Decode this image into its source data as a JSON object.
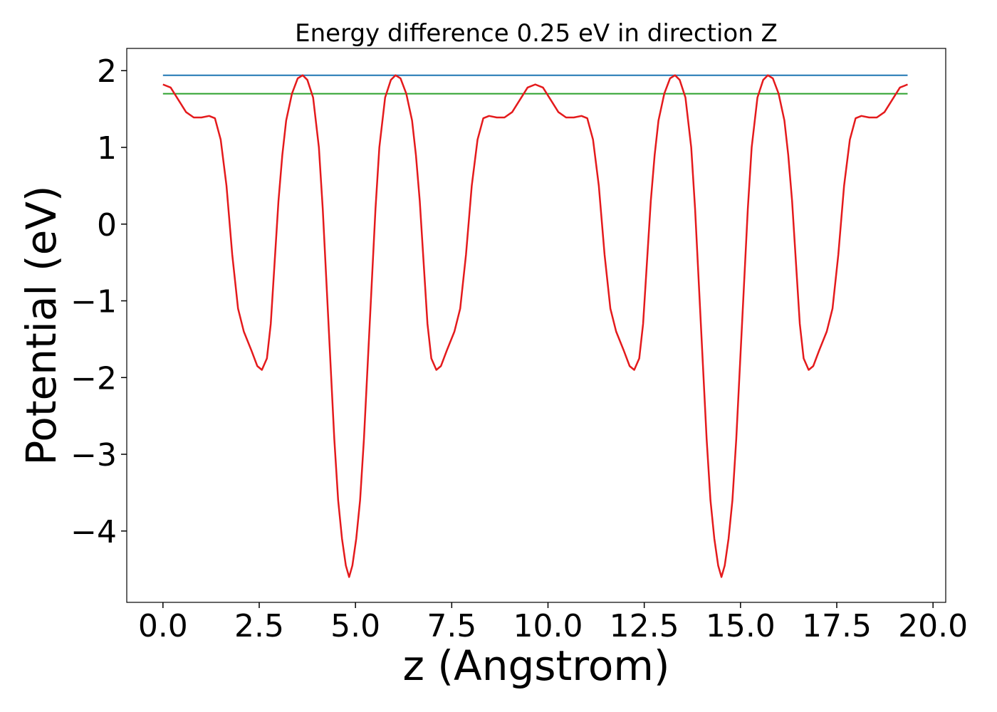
{
  "chart_data": {
    "type": "line",
    "title": "Energy difference 0.25 eV in direction Z",
    "xlabel": "z (Angstrom)",
    "ylabel": "Potential (eV)",
    "xlim": [
      -0.94,
      20.33
    ],
    "ylim": [
      -4.93,
      2.29
    ],
    "xticks": [
      {
        "value": 0,
        "label": "0.0"
      },
      2.5,
      {
        "value": 5,
        "label": "5.0"
      },
      7.5,
      {
        "value": 10,
        "label": "10.0"
      },
      12.5,
      {
        "value": 15,
        "label": "15.0"
      },
      17.5,
      {
        "value": 20,
        "label": "20.0"
      }
    ],
    "yticks": [
      {
        "value": -4,
        "label": "−4"
      },
      {
        "value": -3,
        "label": "−3"
      },
      {
        "value": -2,
        "label": "−2"
      },
      {
        "value": -1,
        "label": "−1"
      },
      0,
      1,
      2
    ],
    "series": [
      {
        "color": "#1f77b4",
        "x": [
          0,
          19.34
        ],
        "values": [
          1.94,
          1.94
        ]
      },
      {
        "color": "#2ca02c",
        "x": [
          0,
          19.34
        ],
        "values": [
          1.7,
          1.7
        ]
      },
      {
        "color": "#e41a1c",
        "x": [
          0,
          0.2,
          0.4,
          0.6,
          0.8,
          1.0,
          1.2,
          1.35,
          1.5,
          1.65,
          1.8,
          1.95,
          2.1,
          2.3,
          2.45,
          2.57,
          2.7,
          2.8,
          2.9,
          3.0,
          3.1,
          3.2,
          3.35,
          3.5,
          3.63,
          3.75,
          3.9,
          4.05,
          4.15,
          4.25,
          4.35,
          4.45,
          4.55,
          4.65,
          4.75,
          4.835,
          4.92,
          5.02,
          5.12,
          5.22,
          5.32,
          5.42,
          5.52,
          5.62,
          5.77,
          5.92,
          6.04,
          6.17,
          6.32,
          6.47,
          6.57,
          6.67,
          6.77,
          6.87,
          6.97,
          7.1,
          7.22,
          7.37,
          7.57,
          7.72,
          7.87,
          8.02,
          8.17,
          8.32,
          8.47,
          8.67,
          8.87,
          9.07,
          9.27,
          9.47,
          9.67,
          9.87,
          10.07,
          10.27,
          10.47,
          10.67,
          10.87,
          11.02,
          11.17,
          11.32,
          11.47,
          11.62,
          11.77,
          11.97,
          12.12,
          12.24,
          12.37,
          12.47,
          12.57,
          12.67,
          12.77,
          12.87,
          13.02,
          13.17,
          13.3,
          13.42,
          13.57,
          13.72,
          13.82,
          13.92,
          14.02,
          14.12,
          14.22,
          14.32,
          14.42,
          14.505,
          14.59,
          14.69,
          14.79,
          14.89,
          14.99,
          15.09,
          15.19,
          15.29,
          15.44,
          15.59,
          15.71,
          15.84,
          15.99,
          16.14,
          16.24,
          16.34,
          16.44,
          16.54,
          16.64,
          16.77,
          16.89,
          17.04,
          17.24,
          17.39,
          17.54,
          17.69,
          17.84,
          17.99,
          18.14,
          18.34,
          18.54,
          18.74,
          18.94,
          19.14,
          19.34
        ],
        "values": [
          1.82,
          1.78,
          1.62,
          1.46,
          1.39,
          1.39,
          1.41,
          1.38,
          1.1,
          0.5,
          -0.4,
          -1.1,
          -1.4,
          -1.65,
          -1.85,
          -1.9,
          -1.75,
          -1.3,
          -0.5,
          0.3,
          0.9,
          1.35,
          1.7,
          1.9,
          1.94,
          1.88,
          1.65,
          1.0,
          0.2,
          -0.8,
          -1.8,
          -2.8,
          -3.6,
          -4.1,
          -4.45,
          -4.6,
          -4.45,
          -4.1,
          -3.6,
          -2.8,
          -1.8,
          -0.8,
          0.2,
          1.0,
          1.65,
          1.88,
          1.94,
          1.9,
          1.7,
          1.35,
          0.9,
          0.3,
          -0.5,
          -1.3,
          -1.75,
          -1.9,
          -1.85,
          -1.65,
          -1.4,
          -1.1,
          -0.4,
          0.5,
          1.1,
          1.38,
          1.41,
          1.39,
          1.39,
          1.46,
          1.62,
          1.78,
          1.82,
          1.78,
          1.62,
          1.46,
          1.39,
          1.39,
          1.41,
          1.38,
          1.1,
          0.5,
          -0.4,
          -1.1,
          -1.4,
          -1.65,
          -1.85,
          -1.9,
          -1.75,
          -1.3,
          -0.5,
          0.3,
          0.9,
          1.35,
          1.7,
          1.9,
          1.94,
          1.88,
          1.65,
          1.0,
          0.2,
          -0.8,
          -1.8,
          -2.8,
          -3.6,
          -4.1,
          -4.45,
          -4.6,
          -4.45,
          -4.1,
          -3.6,
          -2.8,
          -1.8,
          -0.8,
          0.2,
          1.0,
          1.65,
          1.88,
          1.94,
          1.9,
          1.7,
          1.35,
          0.9,
          0.3,
          -0.5,
          -1.3,
          -1.75,
          -1.9,
          -1.85,
          -1.65,
          -1.4,
          -1.1,
          -0.4,
          0.5,
          1.1,
          1.38,
          1.41,
          1.39,
          1.39,
          1.46,
          1.62,
          1.78,
          1.82
        ]
      }
    ]
  }
}
